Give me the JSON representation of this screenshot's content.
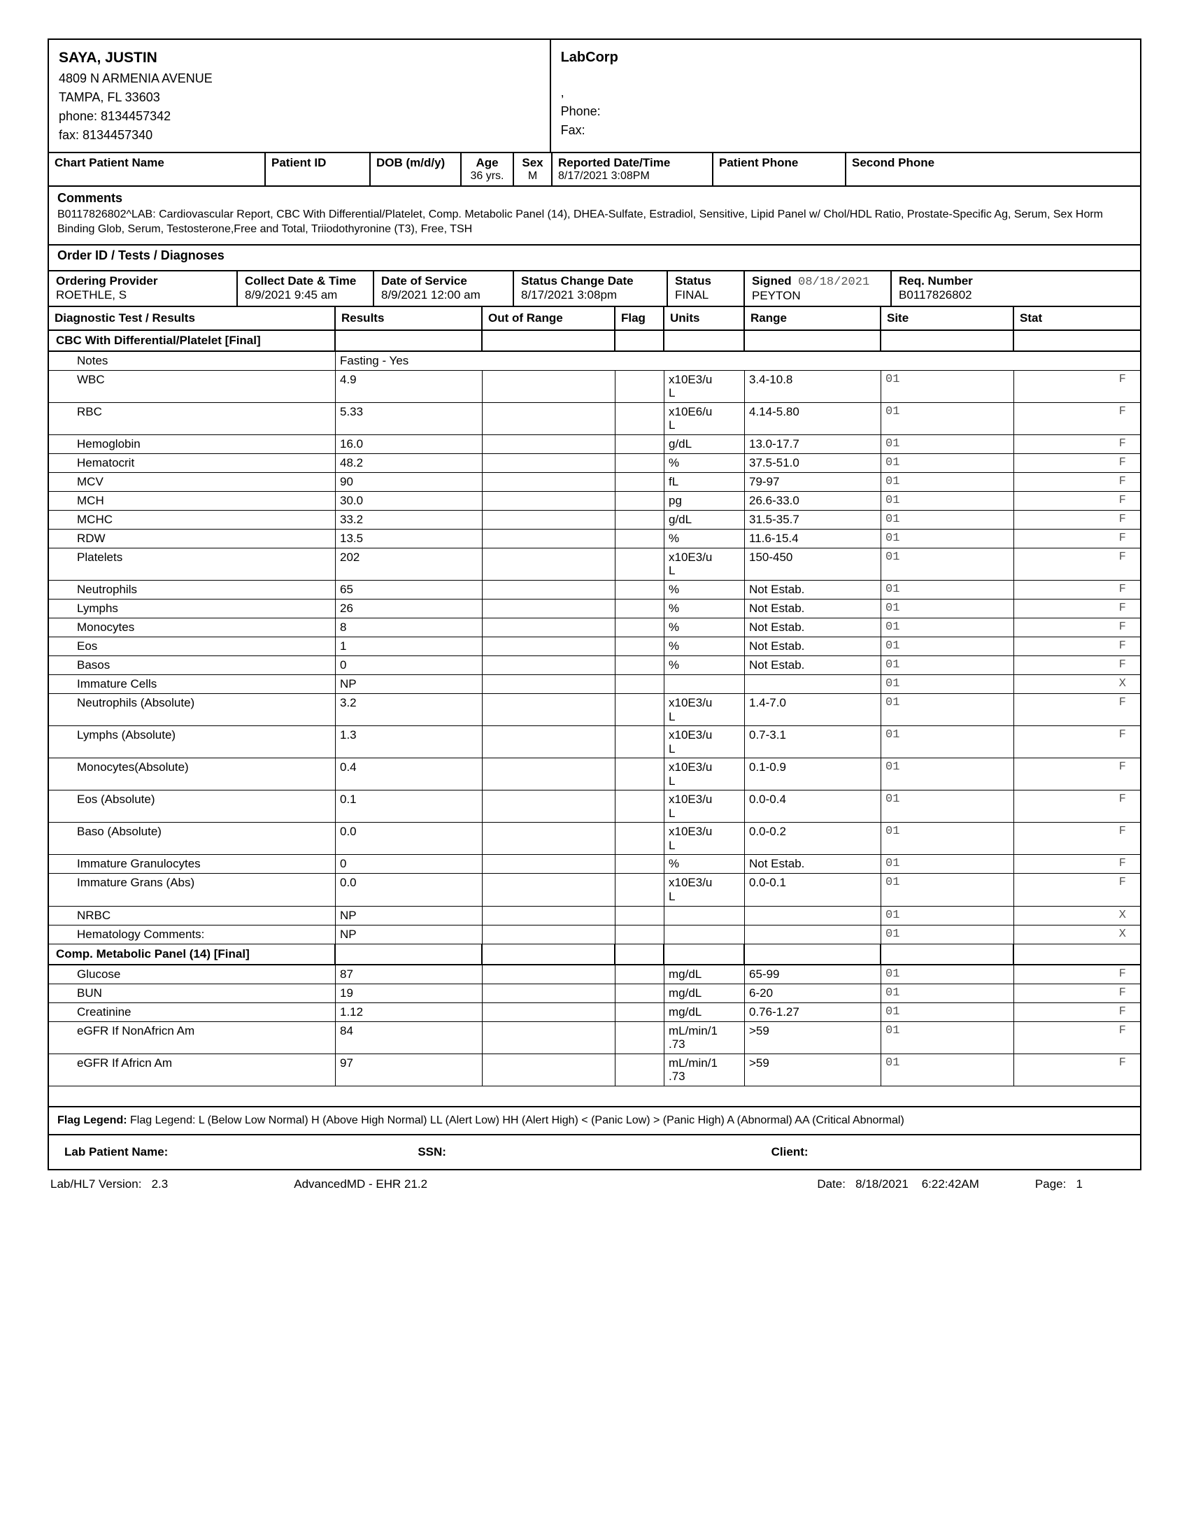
{
  "patient": {
    "name": "SAYA, JUSTIN",
    "addr1": "4809 N ARMENIA AVENUE",
    "addr2": "TAMPA, FL  33603",
    "phone": "phone:  8134457342",
    "fax": "fax:  8134457340"
  },
  "lab": {
    "name": "LabCorp",
    "comma": ",",
    "phone": "Phone:",
    "fax": "Fax:"
  },
  "chart": {
    "h1": "Chart Patient Name",
    "h2": "Patient ID",
    "h3": "DOB (m/d/y)",
    "h4": "Age",
    "h4v": "36 yrs.",
    "h5": "Sex",
    "h5v": "M",
    "h6": "Reported Date/Time",
    "h6v": "8/17/2021  3:08PM",
    "h7": "Patient Phone",
    "h8": "Second Phone"
  },
  "comments": {
    "lbl": "Comments",
    "txt": "B0117826802^LAB: Cardiovascular Report, CBC With Differential/Platelet, Comp. Metabolic Panel (14), DHEA-Sulfate, Estradiol, Sensitive, Lipid Panel w/ Chol/HDL Ratio, Prostate-Specific Ag, Serum, Sex Horm Binding Glob, Serum, Testosterone,Free and Total, Triiodothyronine (T3), Free, TSH"
  },
  "orderHdr": "Order ID / Tests / Diagnoses",
  "prov": {
    "h1": "Ordering Provider",
    "v1": "ROETHLE, S",
    "h2": "Collect Date & Time",
    "v2": "8/9/2021   9:45 am",
    "h3": "Date of Service",
    "v3": "8/9/2021  12:00 am",
    "h4": "Status Change Date",
    "v4": "8/17/2021   3:08pm",
    "h5": "Status",
    "v5": "FINAL",
    "h6a": "Signed",
    "h6b": "08/18/2021",
    "v6": "PEYTON",
    "h7": "Req. Number",
    "v7": "B0117826802"
  },
  "diagHdr": {
    "test": "Diagnostic Test / Results",
    "res": "Results",
    "oor": "Out of Range",
    "flag": "Flag",
    "units": "Units",
    "range": "Range",
    "site": "Site",
    "stat": "Stat"
  },
  "panel1": "CBC With Differential/Platelet [Final]",
  "notes": {
    "lbl": "Notes",
    "val": "Fasting - Yes"
  },
  "rows1": [
    {
      "t": "WBC",
      "r": "4.9",
      "u": "x10E3/u\nL",
      "rg": "3.4-10.8",
      "s": "01",
      "st": "F",
      "tall": true
    },
    {
      "t": "RBC",
      "r": "5.33",
      "u": "x10E6/u\nL",
      "rg": "4.14-5.80",
      "s": "01",
      "st": "F",
      "tall": true
    },
    {
      "t": "Hemoglobin",
      "r": "16.0",
      "u": "g/dL",
      "rg": "13.0-17.7",
      "s": "01",
      "st": "F"
    },
    {
      "t": "Hematocrit",
      "r": "48.2",
      "u": "%",
      "rg": "37.5-51.0",
      "s": "01",
      "st": "F"
    },
    {
      "t": "MCV",
      "r": "90",
      "u": "fL",
      "rg": "79-97",
      "s": "01",
      "st": "F"
    },
    {
      "t": "MCH",
      "r": "30.0",
      "u": "pg",
      "rg": "26.6-33.0",
      "s": "01",
      "st": "F"
    },
    {
      "t": "MCHC",
      "r": "33.2",
      "u": "g/dL",
      "rg": "31.5-35.7",
      "s": "01",
      "st": "F"
    },
    {
      "t": "RDW",
      "r": "13.5",
      "u": "%",
      "rg": "11.6-15.4",
      "s": "01",
      "st": "F"
    },
    {
      "t": "Platelets",
      "r": "202",
      "u": "x10E3/u\nL",
      "rg": "150-450",
      "s": "01",
      "st": "F",
      "tall": true
    },
    {
      "t": "Neutrophils",
      "r": "65",
      "u": "%",
      "rg": "Not Estab.",
      "s": "01",
      "st": "F"
    },
    {
      "t": "Lymphs",
      "r": "26",
      "u": "%",
      "rg": "Not Estab.",
      "s": "01",
      "st": "F"
    },
    {
      "t": "Monocytes",
      "r": "8",
      "u": "%",
      "rg": "Not Estab.",
      "s": "01",
      "st": "F"
    },
    {
      "t": "Eos",
      "r": "1",
      "u": "%",
      "rg": "Not Estab.",
      "s": "01",
      "st": "F"
    },
    {
      "t": "Basos",
      "r": "0",
      "u": "%",
      "rg": "Not Estab.",
      "s": "01",
      "st": "F"
    },
    {
      "t": "Immature Cells",
      "r": "NP",
      "u": "",
      "rg": "",
      "s": "01",
      "st": "X"
    },
    {
      "t": "Neutrophils (Absolute)",
      "r": "3.2",
      "u": "x10E3/u\nL",
      "rg": "1.4-7.0",
      "s": "01",
      "st": "F",
      "tall": true
    },
    {
      "t": "Lymphs (Absolute)",
      "r": "1.3",
      "u": "x10E3/u\nL",
      "rg": "0.7-3.1",
      "s": "01",
      "st": "F",
      "tall": true
    },
    {
      "t": "Monocytes(Absolute)",
      "r": "0.4",
      "u": "x10E3/u\nL",
      "rg": "0.1-0.9",
      "s": "01",
      "st": "F",
      "tall": true
    },
    {
      "t": "Eos (Absolute)",
      "r": "0.1",
      "u": "x10E3/u\nL",
      "rg": "0.0-0.4",
      "s": "01",
      "st": "F",
      "tall": true
    },
    {
      "t": "Baso (Absolute)",
      "r": "0.0",
      "u": "x10E3/u\nL",
      "rg": "0.0-0.2",
      "s": "01",
      "st": "F",
      "tall": true
    },
    {
      "t": "Immature Granulocytes",
      "r": "0",
      "u": "%",
      "rg": "Not Estab.",
      "s": "01",
      "st": "F"
    },
    {
      "t": "Immature Grans (Abs)",
      "r": "0.0",
      "u": "x10E3/u\nL",
      "rg": "0.0-0.1",
      "s": "01",
      "st": "F",
      "tall": true
    },
    {
      "t": "NRBC",
      "r": "NP",
      "u": "",
      "rg": "",
      "s": "01",
      "st": "X"
    },
    {
      "t": "Hematology Comments:",
      "r": "NP",
      "u": "",
      "rg": "",
      "s": "01",
      "st": "X"
    }
  ],
  "panel2": "Comp. Metabolic Panel (14) [Final]",
  "rows2": [
    {
      "t": "Glucose",
      "r": "87",
      "u": "mg/dL",
      "rg": "65-99",
      "s": "01",
      "st": "F"
    },
    {
      "t": "BUN",
      "r": "19",
      "u": "mg/dL",
      "rg": "6-20",
      "s": "01",
      "st": "F"
    },
    {
      "t": "Creatinine",
      "r": "1.12",
      "u": "mg/dL",
      "rg": "0.76-1.27",
      "s": "01",
      "st": "F"
    },
    {
      "t": "eGFR If NonAfricn Am",
      "r": "84",
      "u": "mL/min/1\n.73",
      "rg": ">59",
      "s": "01",
      "st": "F",
      "tall": true
    },
    {
      "t": "eGFR If Africn Am",
      "r": "97",
      "u": "mL/min/1\n.73",
      "rg": ">59",
      "s": "01",
      "st": "F",
      "tall": true
    }
  ],
  "legend": {
    "lbl": "Flag Legend:",
    "txt": "Flag Legend:  L (Below Low Normal)  H (Above High Normal)  LL (Alert Low)  HH (Alert High)  < (Panic Low)  > (Panic High)  A (Abnormal)  AA (Critical Abnormal)"
  },
  "bottom": {
    "lpn": "Lab Patient Name:",
    "ssn": "SSN:",
    "client": "Client:"
  },
  "footer": {
    "ver": "Lab/HL7 Version:",
    "verV": "2.3",
    "app": "AdvancedMD - EHR 21.2",
    "date": "Date:",
    "dateV": "8/18/2021",
    "time": "6:22:42AM",
    "page": "Page:",
    "pageV": "1"
  }
}
